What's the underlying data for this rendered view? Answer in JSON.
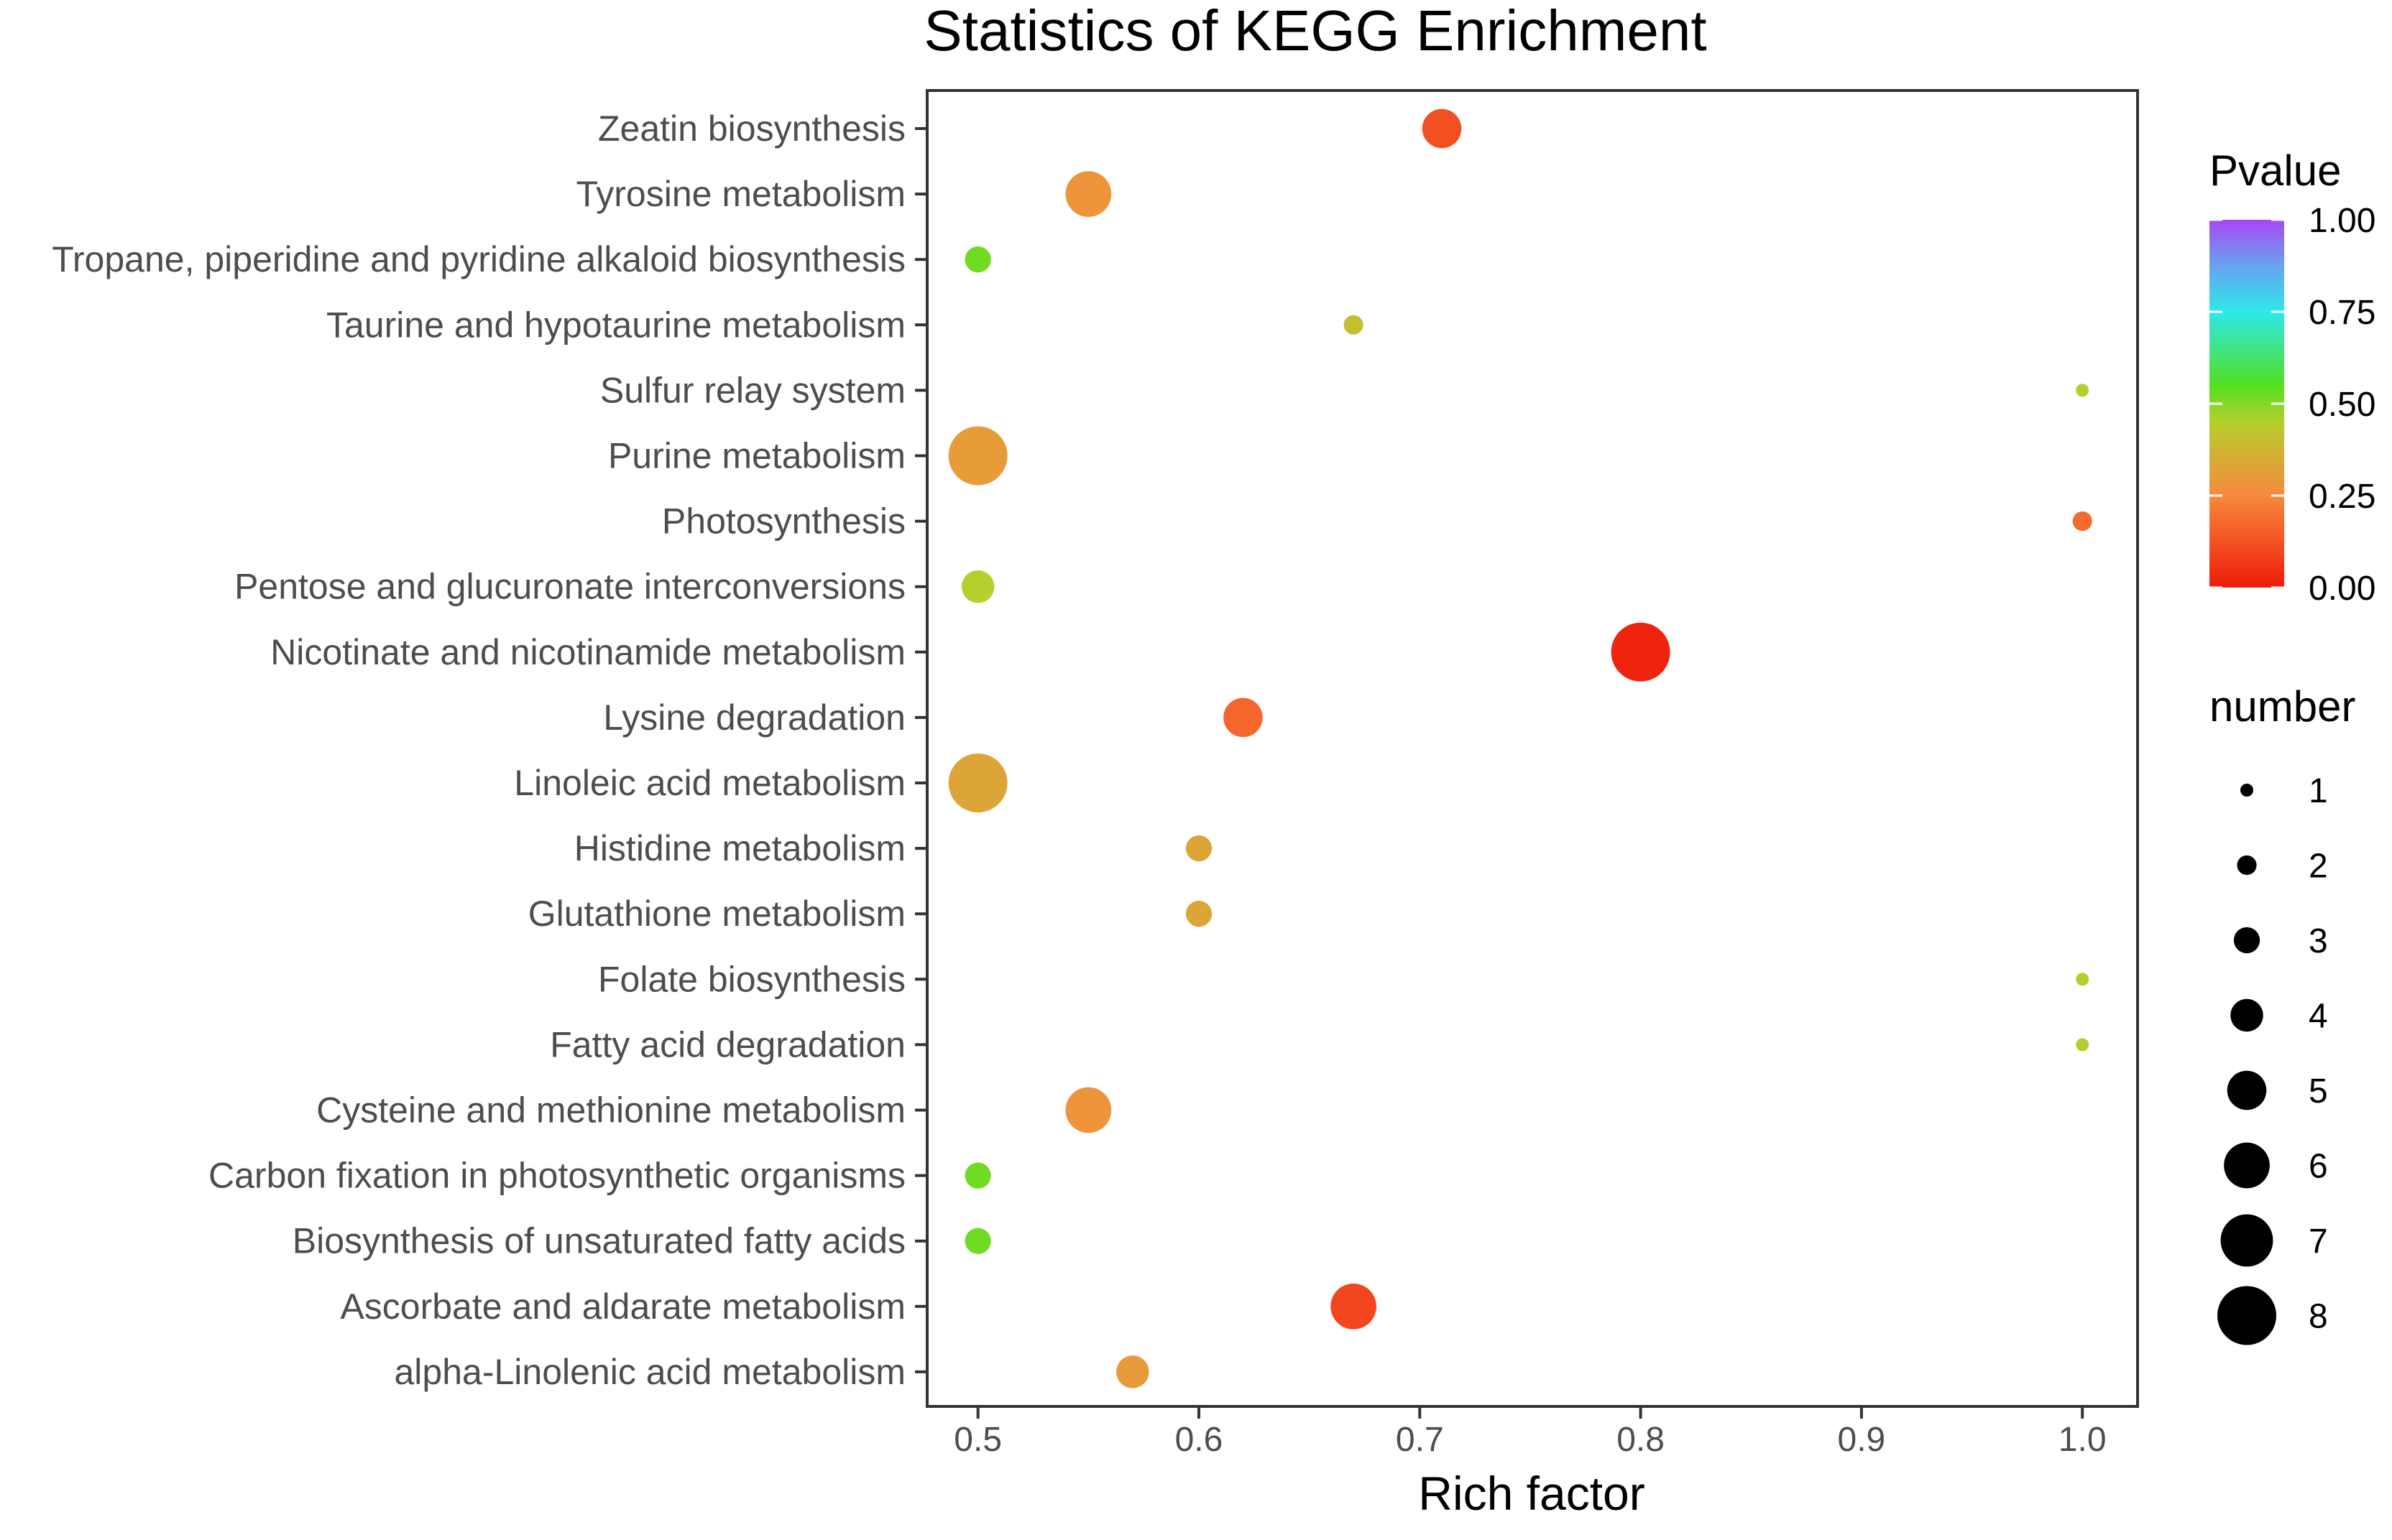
{
  "chart_data": {
    "type": "scatter",
    "title": "Statistics of KEGG Enrichment",
    "xlabel": "Rich factor",
    "ylabel": "",
    "xlim": [
      0.477,
      1.025
    ],
    "xticks": [
      0.5,
      0.6,
      0.7,
      0.8,
      0.9,
      1.0
    ],
    "xtick_labels": [
      "0.5",
      "0.6",
      "0.7",
      "0.8",
      "0.9",
      "1.0"
    ],
    "grid": false,
    "categories": [
      "Zeatin biosynthesis",
      "Tyrosine metabolism",
      "Tropane, piperidine and pyridine alkaloid biosynthesis",
      "Taurine and hypotaurine metabolism",
      "Sulfur relay system",
      "Purine metabolism",
      "Photosynthesis",
      "Pentose and glucuronate interconversions",
      "Nicotinate and nicotinamide metabolism",
      "Lysine degradation",
      "Linoleic acid metabolism",
      "Histidine metabolism",
      "Glutathione metabolism",
      "Folate biosynthesis",
      "Fatty acid degradation",
      "Cysteine and methionine metabolism",
      "Carbon fixation in photosynthetic organisms",
      "Biosynthesis of unsaturated fatty acids",
      "Ascorbate and aldarate metabolism",
      "alpha-Linolenic acid metabolism"
    ],
    "points": [
      {
        "category": "Zeatin biosynthesis",
        "rich_factor": 0.71,
        "number": 5,
        "pvalue": 0.12
      },
      {
        "category": "Tyrosine metabolism",
        "rich_factor": 0.55,
        "number": 6,
        "pvalue": 0.28
      },
      {
        "category": "Tropane, piperidine and pyridine alkaloid biosynthesis",
        "rich_factor": 0.5,
        "number": 3,
        "pvalue": 0.52
      },
      {
        "category": "Taurine and hypotaurine metabolism",
        "rich_factor": 0.67,
        "number": 2,
        "pvalue": 0.4
      },
      {
        "category": "Sulfur relay system",
        "rich_factor": 1.0,
        "number": 1,
        "pvalue": 0.44
      },
      {
        "category": "Purine metabolism",
        "rich_factor": 0.5,
        "number": 8,
        "pvalue": 0.3
      },
      {
        "category": "Photosynthesis",
        "rich_factor": 1.0,
        "number": 2,
        "pvalue": 0.18
      },
      {
        "category": "Pentose and glucuronate interconversions",
        "rich_factor": 0.5,
        "number": 4,
        "pvalue": 0.45
      },
      {
        "category": "Nicotinate and nicotinamide metabolism",
        "rich_factor": 0.8,
        "number": 8,
        "pvalue": 0.02
      },
      {
        "category": "Lysine degradation",
        "rich_factor": 0.62,
        "number": 5,
        "pvalue": 0.17
      },
      {
        "category": "Linoleic acid metabolism",
        "rich_factor": 0.5,
        "number": 8,
        "pvalue": 0.33
      },
      {
        "category": "Histidine metabolism",
        "rich_factor": 0.6,
        "number": 3,
        "pvalue": 0.33
      },
      {
        "category": "Glutathione metabolism",
        "rich_factor": 0.6,
        "number": 3,
        "pvalue": 0.33
      },
      {
        "category": "Folate biosynthesis",
        "rich_factor": 1.0,
        "number": 1,
        "pvalue": 0.44
      },
      {
        "category": "Fatty acid degradation",
        "rich_factor": 1.0,
        "number": 1,
        "pvalue": 0.44
      },
      {
        "category": "Cysteine and methionine metabolism",
        "rich_factor": 0.55,
        "number": 6,
        "pvalue": 0.28
      },
      {
        "category": "Carbon fixation in photosynthetic organisms",
        "rich_factor": 0.5,
        "number": 3,
        "pvalue": 0.52
      },
      {
        "category": "Biosynthesis of unsaturated fatty acids",
        "rich_factor": 0.5,
        "number": 3,
        "pvalue": 0.52
      },
      {
        "category": "Ascorbate and aldarate metabolism",
        "rich_factor": 0.67,
        "number": 6,
        "pvalue": 0.1
      },
      {
        "category": "alpha-Linolenic acid metabolism",
        "rich_factor": 0.57,
        "number": 4,
        "pvalue": 0.3
      }
    ],
    "color_legend": {
      "title": "Pvalue",
      "breaks": [
        1.0,
        0.75,
        0.5,
        0.25,
        0.0
      ],
      "labels": [
        "1.00",
        "0.75",
        "0.50",
        "0.25",
        "0.00"
      ],
      "stops": [
        {
          "value": 0.0,
          "color": "#ee1b0a"
        },
        {
          "value": 0.25,
          "color": "#f8893d"
        },
        {
          "value": 0.45,
          "color": "#b5cf2d"
        },
        {
          "value": 0.55,
          "color": "#52e01f"
        },
        {
          "value": 0.75,
          "color": "#2ee8ea"
        },
        {
          "value": 0.88,
          "color": "#6a9ff2"
        },
        {
          "value": 1.0,
          "color": "#a747f2"
        }
      ]
    },
    "size_legend": {
      "title": "number",
      "values": [
        1,
        2,
        3,
        4,
        5,
        6,
        7,
        8
      ],
      "labels": [
        "1",
        "2",
        "3",
        "4",
        "5",
        "6",
        "7",
        "8"
      ]
    }
  }
}
